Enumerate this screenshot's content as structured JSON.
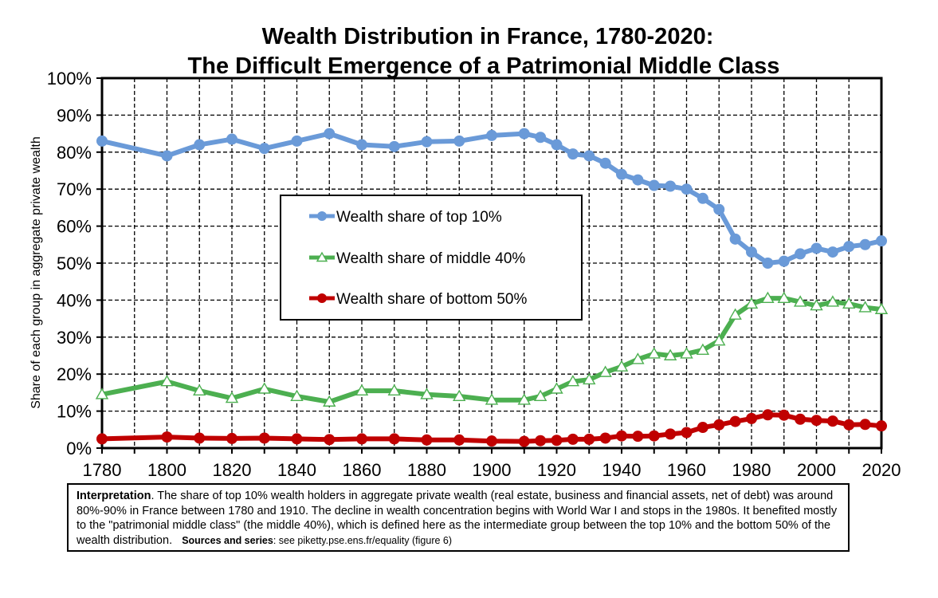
{
  "chart_data": {
    "type": "line",
    "title": "Wealth Distribution in France, 1780-2020:",
    "subtitle": "The Difficult Emergence of a Patrimonial Middle Class",
    "xlabel": "",
    "ylabel": "Share of each group in aggregate private wealth",
    "xlim": [
      1780,
      2020
    ],
    "ylim": [
      0,
      100
    ],
    "x_ticks": [
      "1780",
      "1800",
      "1820",
      "1840",
      "1860",
      "1880",
      "1900",
      "1920",
      "1940",
      "1960",
      "1980",
      "2000",
      "2020"
    ],
    "y_ticks": [
      "0%",
      "10%",
      "20%",
      "30%",
      "40%",
      "50%",
      "60%",
      "70%",
      "80%",
      "90%",
      "100%"
    ],
    "grid": true,
    "legend_position": "center-left",
    "series": [
      {
        "name": "Wealth share of top 10%",
        "color": "#6A9AD8",
        "marker": "circle",
        "x": [
          1780,
          1800,
          1810,
          1820,
          1830,
          1840,
          1850,
          1860,
          1870,
          1880,
          1890,
          1900,
          1910,
          1915,
          1920,
          1925,
          1930,
          1935,
          1940,
          1945,
          1950,
          1955,
          1960,
          1965,
          1970,
          1975,
          1980,
          1985,
          1990,
          1995,
          2000,
          2005,
          2010,
          2015,
          2020
        ],
        "values": [
          83,
          79,
          82,
          83.5,
          81,
          83,
          85,
          82,
          81.5,
          82.8,
          83,
          84.5,
          85,
          84,
          82,
          79.5,
          79,
          77,
          74,
          72.5,
          71,
          70.8,
          70,
          67.5,
          64.5,
          56.5,
          53,
          50,
          50.5,
          52.5,
          54,
          53,
          54.5,
          55,
          56
        ]
      },
      {
        "name": "Wealth share of middle 40%",
        "color": "#4CAF50",
        "marker": "triangle",
        "x": [
          1780,
          1800,
          1810,
          1820,
          1830,
          1840,
          1850,
          1860,
          1870,
          1880,
          1890,
          1900,
          1910,
          1915,
          1920,
          1925,
          1930,
          1935,
          1940,
          1945,
          1950,
          1955,
          1960,
          1965,
          1970,
          1975,
          1980,
          1985,
          1990,
          1995,
          2000,
          2005,
          2010,
          2015,
          2020
        ],
        "values": [
          14.5,
          18,
          15.5,
          13.5,
          16,
          14,
          12.5,
          15.5,
          15.5,
          14.5,
          14,
          13,
          13,
          14,
          16,
          18,
          18.5,
          20.5,
          22,
          24,
          25.5,
          25,
          25.5,
          26.5,
          29,
          36,
          39,
          40.5,
          40.5,
          39.5,
          38.5,
          39.5,
          39,
          38,
          37.5
        ]
      },
      {
        "name": "Wealth share of bottom 50%",
        "color": "#C00000",
        "marker": "circle",
        "x": [
          1780,
          1800,
          1810,
          1820,
          1830,
          1840,
          1850,
          1860,
          1870,
          1880,
          1890,
          1900,
          1910,
          1915,
          1920,
          1925,
          1930,
          1935,
          1940,
          1945,
          1950,
          1955,
          1960,
          1965,
          1970,
          1975,
          1980,
          1985,
          1990,
          1995,
          2000,
          2005,
          2010,
          2015,
          2020
        ],
        "values": [
          2.5,
          3,
          2.7,
          2.6,
          2.7,
          2.5,
          2.3,
          2.5,
          2.5,
          2.2,
          2.2,
          1.9,
          1.8,
          2,
          2.1,
          2.4,
          2.4,
          2.7,
          3.3,
          3.2,
          3.3,
          3.8,
          4.2,
          5.6,
          6.3,
          7.2,
          8,
          9,
          8.9,
          7.8,
          7.5,
          7.3,
          6.3,
          6.4,
          6
        ]
      }
    ]
  },
  "note": {
    "label": "Interpretation",
    "text": ". The share of top 10% wealth holders in aggregate private wealth (real estate, business and financial assets, net of debt) was around 80%-90% in France between 1780 and 1910. The decline in wealth concentration begins with World War I and stops in the 1980s. It benefited mostly to the \"patrimonial middle class\" (the middle 40%), which is defined here as the intermediate group between the top 10% and the bottom 50% of the wealth distribution.",
    "sources_label": "Sources and series",
    "sources_text": ": see piketty.pse.ens.fr/equality (figure 6)"
  }
}
